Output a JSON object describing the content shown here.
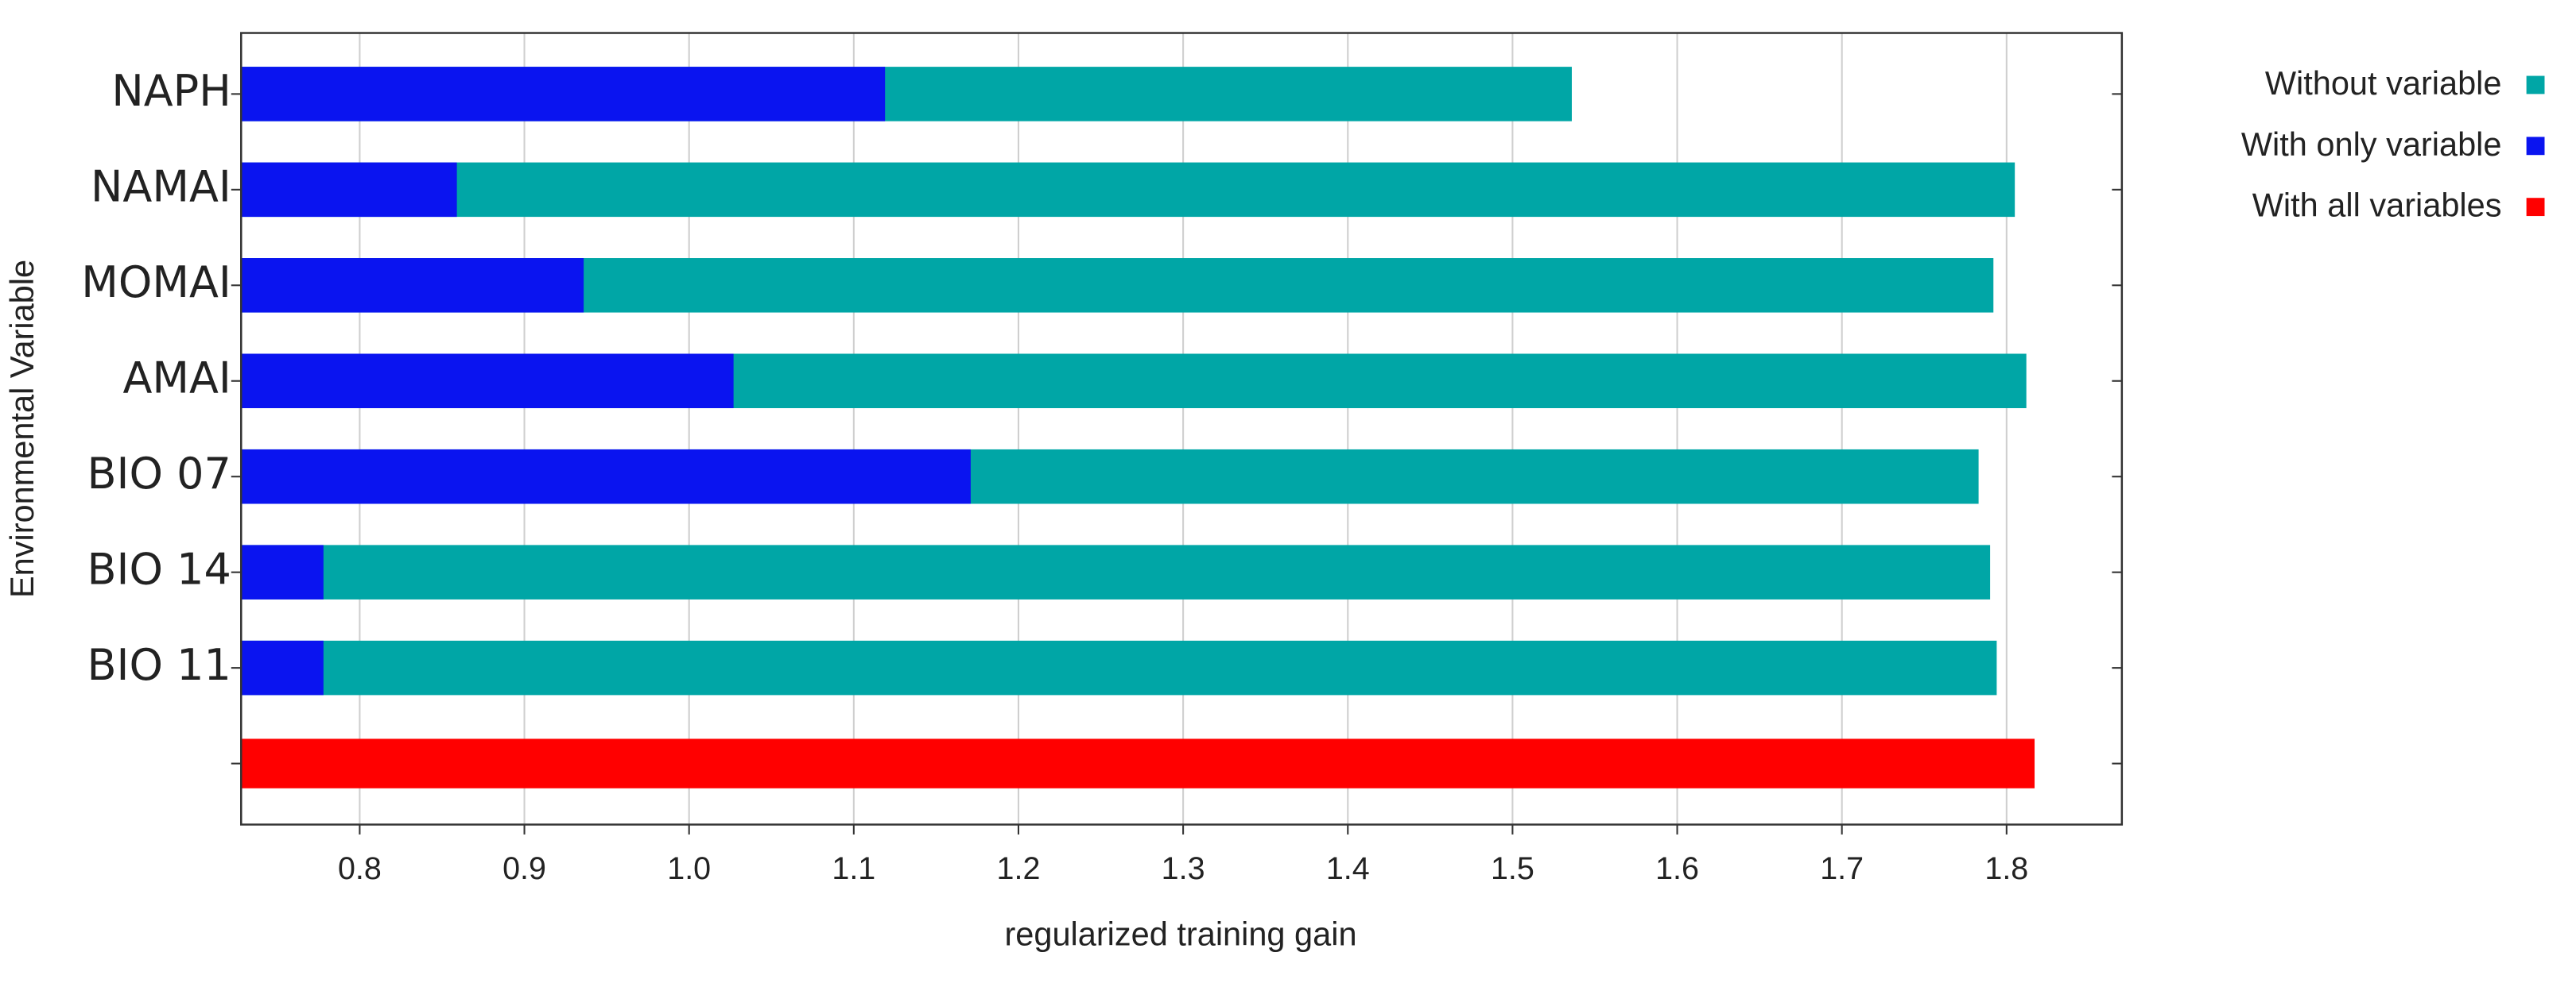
{
  "chart_data": {
    "type": "bar",
    "orientation": "horizontal",
    "x_label": "regularized training gain",
    "y_label": "Environmental Variable",
    "categories": [
      "NAPH",
      "NAMAI",
      "MOMAI",
      "AMAI",
      "BIO 07",
      "BIO 14",
      "BIO 11",
      null
    ],
    "series": [
      {
        "name": "Without variable",
        "color": "#00a6a6",
        "values": [
          1.536,
          1.805,
          1.792,
          1.812,
          1.783,
          1.79,
          1.794,
          null
        ]
      },
      {
        "name": "With only variable",
        "color": "#0a14f0",
        "values": [
          1.119,
          0.859,
          0.936,
          1.027,
          1.171,
          0.778,
          0.778,
          null
        ]
      },
      {
        "name": "With all variables",
        "color": "#ff0000",
        "values": [
          null,
          null,
          null,
          null,
          null,
          null,
          null,
          1.817
        ]
      }
    ],
    "xlim": [
      0.728,
      1.87
    ],
    "xticks": [
      0.8,
      0.9,
      {
        "value": 1.0,
        "label": "1.0"
      },
      1.1,
      1.2,
      1.3,
      1.4,
      1.5,
      1.6,
      1.7,
      1.8
    ],
    "grid": true,
    "legend": "top-right"
  }
}
